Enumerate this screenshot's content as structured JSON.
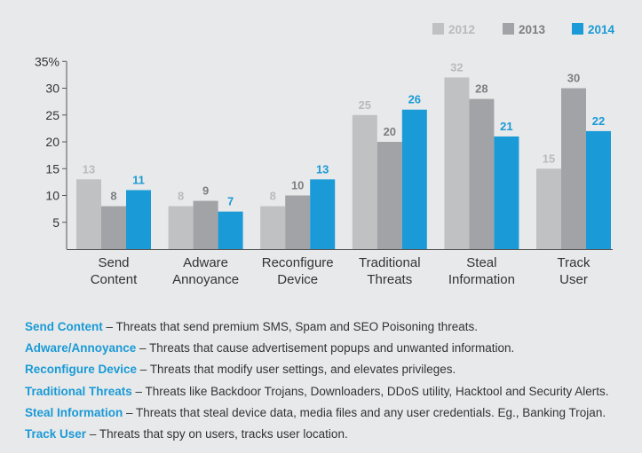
{
  "chart_data": {
    "type": "bar",
    "categories": [
      [
        "Send",
        "Content"
      ],
      [
        "Adware",
        "Annoyance"
      ],
      [
        "Reconfigure",
        "Device"
      ],
      [
        "Traditional",
        "Threats"
      ],
      [
        "Steal",
        "Information"
      ],
      [
        "Track",
        "User"
      ]
    ],
    "series": [
      {
        "name": "2012",
        "color": "#c0c1c3",
        "label_color": "#b9babc",
        "values": [
          13,
          8,
          8,
          25,
          32,
          15
        ]
      },
      {
        "name": "2013",
        "color": "#a2a3a6",
        "label_color": "#7d7e81",
        "values": [
          8,
          9,
          10,
          20,
          28,
          30
        ]
      },
      {
        "name": "2014",
        "color": "#1a9ad6",
        "label_color": "#1a9ad6",
        "values": [
          11,
          7,
          13,
          26,
          21,
          22
        ]
      }
    ],
    "y_ticks": [
      "5",
      "10",
      "15",
      "20",
      "25",
      "30",
      "35%"
    ],
    "ylim": [
      0,
      35
    ],
    "legend": "top-right",
    "grid": false
  },
  "descriptions": [
    {
      "term": "Send Content",
      "text": " – Threats that send premium SMS, Spam and SEO Poisoning threats."
    },
    {
      "term": "Adware/Annoyance",
      "text": " – Threats that cause advertisement popups and unwanted information."
    },
    {
      "term": "Reconfigure Device",
      "text": " – Threats that modify user settings, and elevates privileges."
    },
    {
      "term": "Traditional Threats",
      "text": " – Threats like Backdoor Trojans, Downloaders, DDoS utility, Hacktool and Security Alerts."
    },
    {
      "term": "Steal Information",
      "text": " – Threats that steal device data, media files and any user credentials. Eg., Banking Trojan."
    },
    {
      "term": "Track User",
      "text": " – Threats that spy on users, tracks user location."
    }
  ]
}
